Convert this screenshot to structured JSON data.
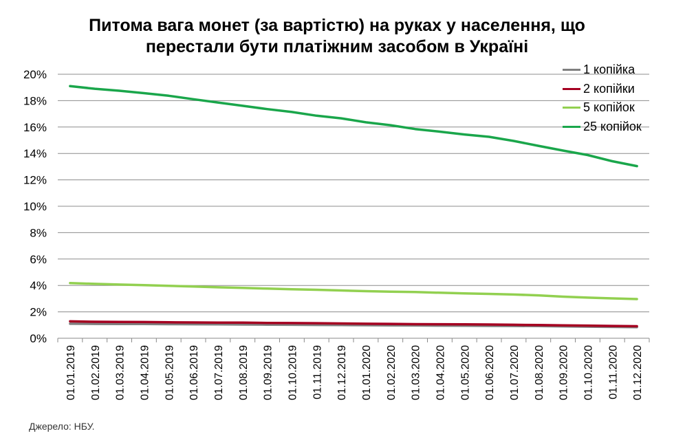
{
  "chart_data": {
    "type": "line",
    "title": [
      "Питома вага монет (за вартістю) на руках у населення, що",
      "перестали бути платіжним засобом в Україні"
    ],
    "x": [
      "01.01.2019",
      "01.02.2019",
      "01.03.2019",
      "01.04.2019",
      "01.05.2019",
      "01.06.2019",
      "01.07.2019",
      "01.08.2019",
      "01.09.2019",
      "01.10.2019",
      "01.11.2019",
      "01.12.2019",
      "01.01.2020",
      "01.02.2020",
      "01.03.2020",
      "01.04.2020",
      "01.05.2020",
      "01.06.2020",
      "01.07.2020",
      "01.08.2020",
      "01.09.2020",
      "01.10.2020",
      "01.11.2020",
      "01.12.2020"
    ],
    "yticks": [
      "0%",
      "2%",
      "4%",
      "6%",
      "8%",
      "10%",
      "12%",
      "14%",
      "16%",
      "18%",
      "20%"
    ],
    "ylim": [
      0,
      20
    ],
    "grid": true,
    "legend_position": "top-right",
    "series": [
      {
        "name": "1 копійка",
        "color": "#7f7f7f",
        "values": [
          1.1,
          1.09,
          1.08,
          1.08,
          1.07,
          1.06,
          1.05,
          1.04,
          1.03,
          1.02,
          1.01,
          1.0,
          0.99,
          0.98,
          0.97,
          0.96,
          0.95,
          0.94,
          0.93,
          0.92,
          0.9,
          0.88,
          0.86,
          0.84
        ]
      },
      {
        "name": "2 копійки",
        "color": "#a50021",
        "values": [
          1.28,
          1.25,
          1.24,
          1.23,
          1.21,
          1.2,
          1.19,
          1.18,
          1.16,
          1.15,
          1.14,
          1.12,
          1.1,
          1.09,
          1.07,
          1.06,
          1.05,
          1.04,
          1.02,
          1.0,
          0.98,
          0.96,
          0.93,
          0.91
        ]
      },
      {
        "name": "5 копійок",
        "color": "#92d050",
        "values": [
          4.18,
          4.12,
          4.07,
          4.02,
          3.97,
          3.92,
          3.86,
          3.81,
          3.76,
          3.71,
          3.67,
          3.62,
          3.57,
          3.53,
          3.5,
          3.45,
          3.4,
          3.36,
          3.31,
          3.25,
          3.15,
          3.08,
          3.02,
          2.97
        ]
      },
      {
        "name": "25 копійок",
        "color": "#1aa64b",
        "values": [
          19.1,
          18.9,
          18.75,
          18.57,
          18.37,
          18.11,
          17.86,
          17.61,
          17.36,
          17.14,
          16.86,
          16.66,
          16.36,
          16.14,
          15.85,
          15.65,
          15.44,
          15.26,
          14.95,
          14.58,
          14.22,
          13.88,
          13.41,
          13.04
        ]
      }
    ]
  },
  "source": "Джерело: НБУ."
}
